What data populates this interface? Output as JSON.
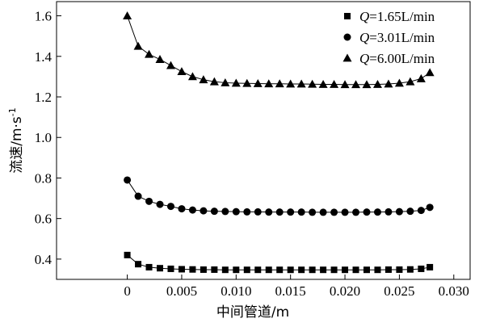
{
  "chart_data": {
    "type": "line",
    "title": "",
    "xlabel": "中间管道/m",
    "ylabel_main": "流速/m·s",
    "ylabel_exp": "-1",
    "xlim": [
      -0.0065,
      0.0315
    ],
    "ylim": [
      0.3,
      1.67
    ],
    "xticks": [
      0,
      0.005,
      0.01,
      0.015,
      0.02,
      0.025,
      0.03
    ],
    "xtick_labels": [
      "0",
      "0.005",
      "0.010",
      "0.015",
      "0.020",
      "0.025",
      "0.030"
    ],
    "yticks": [
      0.4,
      0.6,
      0.8,
      1.0,
      1.2,
      1.4,
      1.6
    ],
    "ytick_labels": [
      "0.4",
      "0.6",
      "0.8",
      "1.0",
      "1.2",
      "1.4",
      "1.6"
    ],
    "grid": false,
    "legend_position": "top-right",
    "x": [
      0,
      0.001,
      0.002,
      0.003,
      0.004,
      0.005,
      0.006,
      0.007,
      0.008,
      0.009,
      0.01,
      0.011,
      0.012,
      0.013,
      0.014,
      0.015,
      0.016,
      0.017,
      0.018,
      0.019,
      0.02,
      0.021,
      0.022,
      0.023,
      0.024,
      0.025,
      0.026,
      0.027,
      0.0278
    ],
    "series": [
      {
        "name_prefix": "Q",
        "name_suffix": "=1.65L/min",
        "marker": "square",
        "values": [
          0.42,
          0.375,
          0.36,
          0.355,
          0.352,
          0.35,
          0.349,
          0.348,
          0.348,
          0.347,
          0.347,
          0.347,
          0.347,
          0.347,
          0.347,
          0.347,
          0.347,
          0.347,
          0.347,
          0.347,
          0.347,
          0.347,
          0.347,
          0.347,
          0.348,
          0.348,
          0.349,
          0.352,
          0.36
        ]
      },
      {
        "name_prefix": "Q",
        "name_suffix": "=3.01L/min",
        "marker": "circle",
        "values": [
          0.79,
          0.71,
          0.685,
          0.67,
          0.66,
          0.648,
          0.642,
          0.638,
          0.636,
          0.635,
          0.634,
          0.633,
          0.633,
          0.632,
          0.632,
          0.632,
          0.632,
          0.631,
          0.631,
          0.631,
          0.631,
          0.631,
          0.632,
          0.632,
          0.633,
          0.634,
          0.636,
          0.64,
          0.655
        ]
      },
      {
        "name_prefix": "Q",
        "name_suffix": "=6.00L/min",
        "marker": "triangle",
        "values": [
          1.6,
          1.45,
          1.41,
          1.385,
          1.355,
          1.325,
          1.3,
          1.285,
          1.275,
          1.27,
          1.268,
          1.267,
          1.266,
          1.265,
          1.265,
          1.264,
          1.264,
          1.263,
          1.262,
          1.262,
          1.261,
          1.261,
          1.261,
          1.262,
          1.264,
          1.268,
          1.275,
          1.29,
          1.32
        ]
      }
    ]
  }
}
